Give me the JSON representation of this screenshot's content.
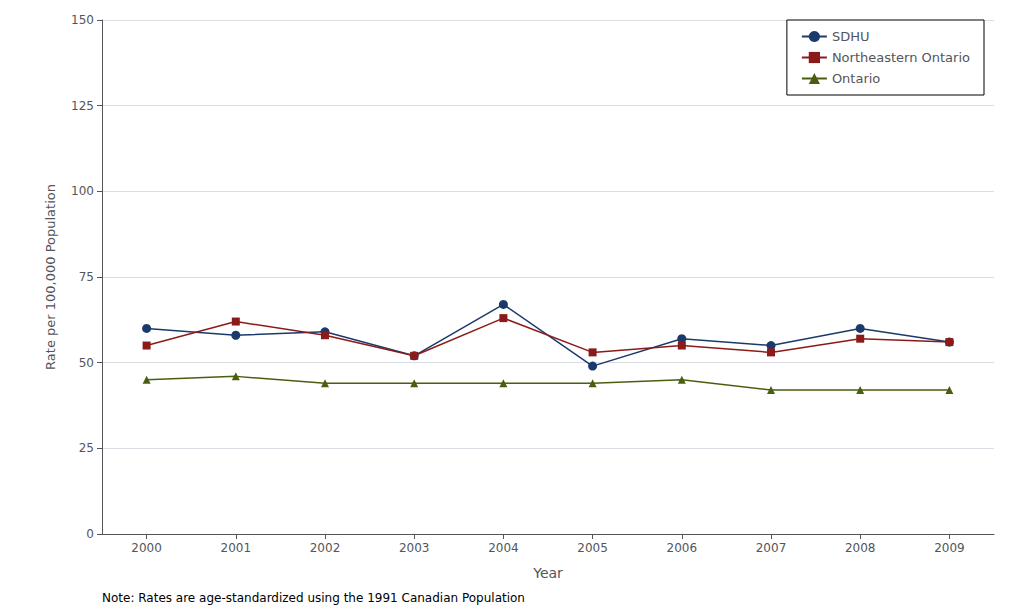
{
  "chart_data": {
    "type": "line",
    "x": [
      2000,
      2001,
      2002,
      2003,
      2004,
      2005,
      2006,
      2007,
      2008,
      2009
    ],
    "series": [
      {
        "name": "SDHU",
        "color": "#1a3a6b",
        "marker": "circle",
        "values": [
          60,
          58,
          59,
          52,
          67,
          49,
          57,
          55,
          60,
          56
        ]
      },
      {
        "name": "Northeastern Ontario",
        "color": "#8b1a1a",
        "marker": "square",
        "values": [
          55,
          62,
          58,
          52,
          63,
          53,
          55,
          53,
          57,
          56
        ]
      },
      {
        "name": "Ontario",
        "color": "#4a5e10",
        "marker": "triangle",
        "values": [
          45,
          46,
          44,
          44,
          44,
          44,
          45,
          42,
          42,
          42
        ]
      }
    ],
    "xlabel": "Year",
    "ylabel": "Rate per 100,000 Population",
    "xlim": [
      1999.5,
      2009.5
    ],
    "xticks": [
      2000,
      2001,
      2002,
      2003,
      2004,
      2005,
      2006,
      2007,
      2008,
      2009
    ],
    "ylim": [
      0,
      150
    ],
    "yticks": [
      0,
      25,
      50,
      75,
      100,
      125,
      150
    ],
    "grid": true,
    "legend": "upper right",
    "annotations": [
      "Note: Rates are age-standardized using the 1991 Canadian Population"
    ]
  }
}
